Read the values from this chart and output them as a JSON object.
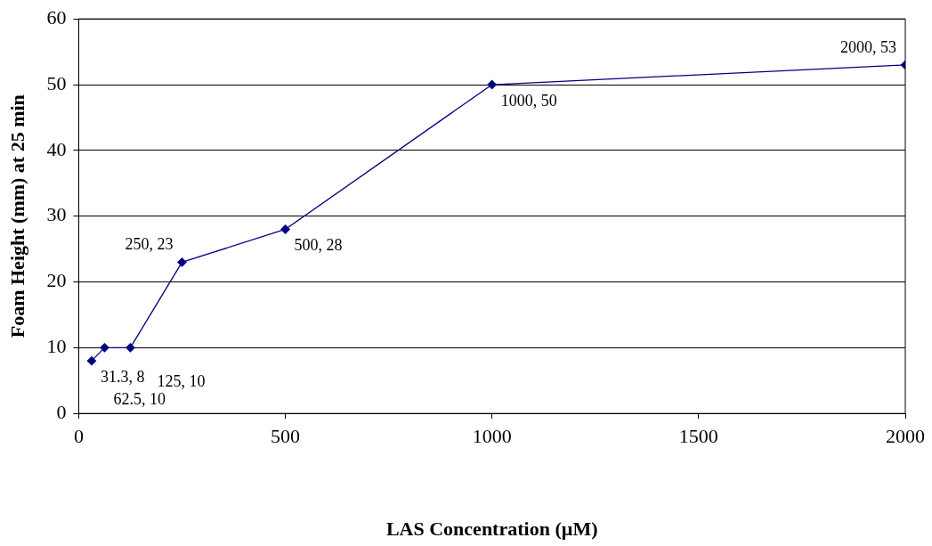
{
  "chart_data": {
    "type": "line",
    "xlabel": "LAS Concentration (µM)",
    "ylabel": "Foam Height (mm) at 25 min",
    "x": [
      31.3,
      62.5,
      125,
      250,
      500,
      1000,
      2000
    ],
    "series": [
      {
        "color": "#000080",
        "values": [
          8,
          10,
          10,
          23,
          28,
          50,
          53
        ],
        "value_labels": [
          "31.3, 8",
          "62.5, 10",
          "125, 10",
          "250, 23",
          "500, 28",
          "1000, 50",
          "2000, 53"
        ]
      }
    ],
    "xlim": [
      0,
      2000
    ],
    "xticks": [
      0,
      500,
      1000,
      1500,
      2000
    ],
    "ylim": [
      0,
      60
    ],
    "yticks": [
      0,
      10,
      20,
      30,
      40,
      50,
      60
    ],
    "grid": "y",
    "legend": false,
    "marker": "diamond",
    "line_style": "solid"
  }
}
